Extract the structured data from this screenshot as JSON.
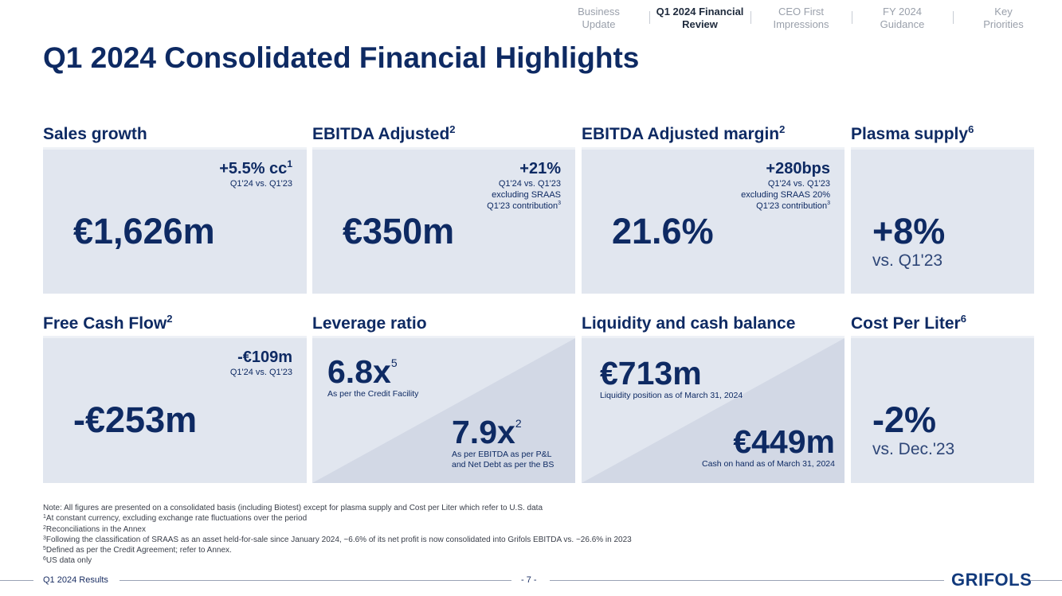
{
  "nav": [
    "Business Update",
    "Q1 2024 Financial Review",
    "CEO First Impressions",
    "FY 2024 Guidance",
    "Key Priorities"
  ],
  "nav_active": "Q1 2024 Financial Review",
  "title": "Q1 2024 Consolidated Financial Highlights",
  "cards": {
    "sales": {
      "title": "Sales growth",
      "badge": "+5.5% cc",
      "badge_sup": "1",
      "badge_lines": [
        "Q1'24 vs. Q1'23"
      ],
      "value": "€1,626m"
    },
    "ebitda": {
      "title": "EBITDA Adjusted",
      "title_sup": "2",
      "badge": "+21%",
      "badge_lines": [
        "Q1'24 vs. Q1'23",
        "excluding SRAAS",
        "Q1'23 contribution"
      ],
      "badge_sup": "3",
      "value": "€350m"
    },
    "margin": {
      "title": "EBITDA Adjusted margin",
      "title_sup": "2",
      "badge": "+280bps",
      "badge_lines": [
        "Q1'24 vs. Q1'23",
        "excluding SRAAS 20%",
        "Q1'23 contribution"
      ],
      "badge_sup": "3",
      "value": "21.6%"
    },
    "plasma": {
      "title": "Plasma supply",
      "title_sup": "6",
      "value": "+8%",
      "sub": "vs. Q1'23"
    },
    "fcf": {
      "title": "Free Cash Flow",
      "title_sup": "2",
      "badge": "-€109m",
      "badge_lines": [
        "Q1'24 vs. Q1'23"
      ],
      "value": "-€253m"
    },
    "leverage": {
      "title": "Leverage ratio",
      "value1": "6.8x",
      "value1_sup": "5",
      "caption1": "As per the Credit Facility",
      "value2": "7.9x",
      "value2_sup": "2",
      "caption2_lines": [
        "As per EBITDA as per P&L",
        "and Net Debt as per the BS"
      ]
    },
    "liquidity": {
      "title": "Liquidity and cash balance",
      "value1": "€713m",
      "caption1": "Liquidity position as of March 31, 2024",
      "value2": "€449m",
      "caption2": "Cash on hand as of March 31, 2024"
    },
    "cpl": {
      "title": "Cost Per Liter",
      "title_sup": "6",
      "value": "-2%",
      "sub": "vs. Dec.'23"
    }
  },
  "notes": {
    "main": "Note: All figures are presented on a consolidated basis (including Biotest) except for plasma supply and Cost per Liter which refer to U.S. data",
    "footnotes": [
      {
        "num": "1",
        "text": "At constant currency, excluding exchange rate fluctuations over the period"
      },
      {
        "num": "2",
        "text": "Reconciliations in the Annex"
      },
      {
        "num": "3",
        "text": "Following the classification of SRAAS as an asset held-for-sale since January 2024, ~6.6% of its net profit is now consolidated into Grifols EBITDA vs. ~26.6% in 2023"
      },
      {
        "num": "5",
        "text": "Defined as per the Credit Agreement; refer to Annex."
      },
      {
        "num": "6",
        "text": "US data only"
      }
    ]
  },
  "footer": {
    "left": "Q1 2024 Results",
    "page": "- 7 -",
    "logo": "GRIFOLS"
  },
  "colors": {
    "navy": "#0e2a63",
    "card_bg": "#e1e6ef",
    "diag_bg": "#d2d8e5"
  }
}
